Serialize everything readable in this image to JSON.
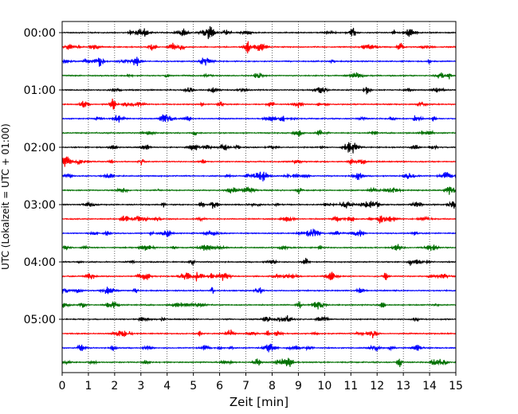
{
  "chart_data": {
    "type": "line",
    "subtype": "helicorder",
    "xlabel": "Zeit  [min]",
    "ylabel": "UTC (Lokalzeit = UTC + 01:00)",
    "xlim": [
      0,
      15
    ],
    "x_ticks": [
      0,
      1,
      2,
      3,
      4,
      5,
      6,
      7,
      8,
      9,
      10,
      11,
      12,
      13,
      14,
      15
    ],
    "row_interval_minutes": 15,
    "y_tick_labels": [
      "00:00",
      "01:00",
      "02:00",
      "03:00",
      "04:00",
      "05:00"
    ],
    "grid": "vertical dotted",
    "trace_colors": [
      "#000000",
      "#ff0000",
      "#0000ff",
      "#007000"
    ],
    "rows": [
      "00:00",
      "00:15",
      "00:30",
      "00:45",
      "01:00",
      "01:15",
      "01:30",
      "01:45",
      "02:00",
      "02:15",
      "02:30",
      "02:45",
      "03:00",
      "03:15",
      "03:30",
      "03:45",
      "04:00",
      "04:15",
      "04:30",
      "04:45",
      "05:00",
      "05:15",
      "05:30",
      "05:45"
    ]
  }
}
